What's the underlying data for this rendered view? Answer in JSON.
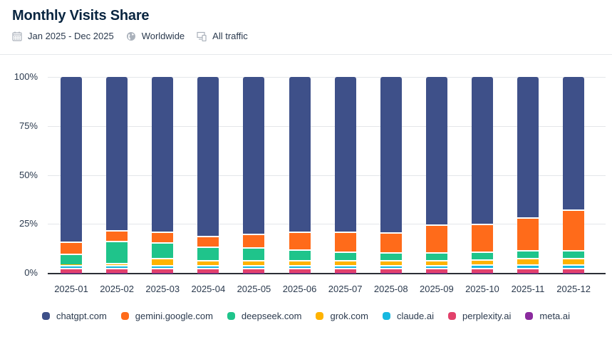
{
  "header": {
    "title": "Monthly Visits Share",
    "date_range": "Jan 2025 - Dec 2025",
    "region": "Worldwide",
    "traffic": "All traffic",
    "icons": [
      "calendar-icon",
      "globe-icon",
      "devices-icon"
    ]
  },
  "chart_data": {
    "type": "bar",
    "stacked": true,
    "title": "Monthly Visits Share",
    "xlabel": "",
    "ylabel": "",
    "ylim": [
      0,
      100
    ],
    "yticks": [
      "0%",
      "25%",
      "50%",
      "75%",
      "100%"
    ],
    "grid": true,
    "legend_position": "bottom",
    "categories": [
      "2025-01",
      "2025-02",
      "2025-03",
      "2025-04",
      "2025-05",
      "2025-06",
      "2025-07",
      "2025-08",
      "2025-09",
      "2025-10",
      "2025-11",
      "2025-12"
    ],
    "series": [
      {
        "name": "meta.ai",
        "color": "#8b2b9e",
        "values": [
          0.1,
          0.1,
          0.1,
          0.1,
          0.1,
          0.1,
          0.1,
          0.1,
          0.1,
          0.1,
          0.1,
          0.1
        ]
      },
      {
        "name": "perplexity.ai",
        "color": "#e2416b",
        "values": [
          2.4,
          2.4,
          2.4,
          2.4,
          2.4,
          2.4,
          2.4,
          2.4,
          2.4,
          2.4,
          2.4,
          2.4
        ]
      },
      {
        "name": "claude.ai",
        "color": "#17b8e0",
        "values": [
          1.6,
          1.5,
          1.5,
          1.5,
          1.5,
          1.5,
          1.5,
          1.6,
          1.6,
          2.0,
          2.0,
          2.0
        ]
      },
      {
        "name": "grok.com",
        "color": "#ffb300",
        "values": [
          0.3,
          1.0,
          3.5,
          2.5,
          2.5,
          2.5,
          2.5,
          2.5,
          2.5,
          2.5,
          3.0,
          3.0
        ]
      },
      {
        "name": "deepseek.com",
        "color": "#1fc48b",
        "values": [
          5.6,
          11.5,
          8.0,
          7.0,
          6.5,
          5.5,
          4.5,
          4.0,
          4.0,
          4.0,
          4.0,
          4.0
        ]
      },
      {
        "name": "gemini.google.com",
        "color": "#ff6b1a",
        "values": [
          6.0,
          5.5,
          5.5,
          5.5,
          7.0,
          9.0,
          10.0,
          10.0,
          14.0,
          14.0,
          17.0,
          21.0
        ]
      },
      {
        "name": "chatgpt.com",
        "color": "#3e5089",
        "values": [
          84.0,
          78.0,
          79.0,
          81.0,
          80.0,
          79.0,
          79.0,
          79.4,
          75.4,
          75.0,
          71.5,
          67.5
        ]
      }
    ]
  },
  "legend": {
    "items": [
      {
        "label": "chatgpt.com",
        "color": "#3e5089"
      },
      {
        "label": "gemini.google.com",
        "color": "#ff6b1a"
      },
      {
        "label": "deepseek.com",
        "color": "#1fc48b"
      },
      {
        "label": "grok.com",
        "color": "#ffb300"
      },
      {
        "label": "claude.ai",
        "color": "#17b8e0"
      },
      {
        "label": "perplexity.ai",
        "color": "#e2416b"
      },
      {
        "label": "meta.ai",
        "color": "#8b2b9e"
      }
    ]
  }
}
